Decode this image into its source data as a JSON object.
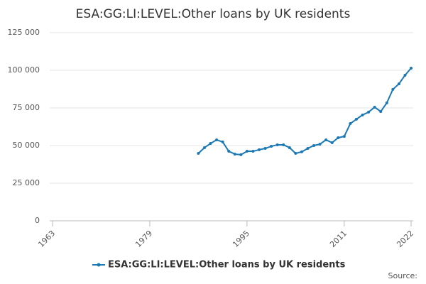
{
  "chart_data": {
    "type": "line",
    "title": "ESA:GG:LI:LEVEL:Other loans by UK residents",
    "x": [
      1987,
      1988,
      1989,
      1990,
      1991,
      1992,
      1993,
      1994,
      1995,
      1996,
      1997,
      1998,
      1999,
      2000,
      2001,
      2002,
      2003,
      2004,
      2005,
      2006,
      2007,
      2008,
      2009,
      2010,
      2011,
      2012,
      2013,
      2014,
      2015,
      2016,
      2017,
      2018,
      2019,
      2020,
      2021,
      2022
    ],
    "series": [
      {
        "name": "ESA:GG:LI:LEVEL:Other loans by UK residents",
        "color": "#1a78b4",
        "values": [
          44800,
          48600,
          51400,
          53800,
          52400,
          46200,
          44300,
          43900,
          46200,
          46200,
          47200,
          48100,
          49500,
          50500,
          50500,
          48600,
          44800,
          45800,
          48100,
          50000,
          50900,
          53800,
          51900,
          55200,
          56100,
          64600,
          67500,
          70300,
          72200,
          75500,
          72600,
          78300,
          87300,
          91000,
          96700,
          101400
        ]
      }
    ],
    "xlim": [
      1963,
      2022
    ],
    "xticks": [
      1963,
      1979,
      1995,
      2011,
      2022
    ],
    "ylim": [
      0,
      125000
    ],
    "yticks": [
      0,
      {
        "value": 25000,
        "label": "25 000"
      },
      {
        "value": 50000,
        "label": "50 000"
      },
      {
        "value": 75000,
        "label": "75 000"
      },
      {
        "value": 100000,
        "label": "100 000"
      },
      {
        "value": 125000,
        "label": "125 000"
      }
    ],
    "grid": true,
    "source": "Source:"
  }
}
